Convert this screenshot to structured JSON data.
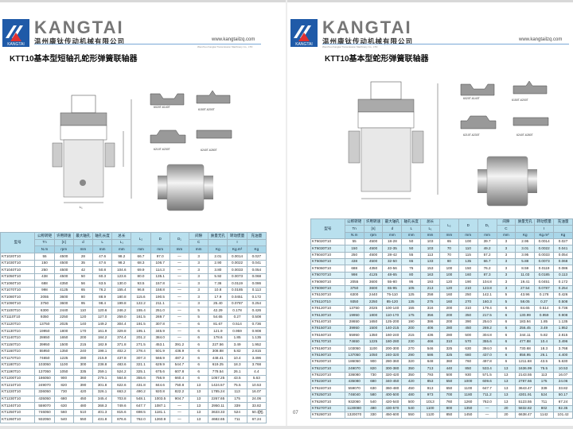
{
  "brand": {
    "name": "KANGTAI",
    "logo_text": "KANGTAI",
    "company": "温州康钛传动机械有限公司",
    "url": "www.kangtailzq.com",
    "url_sub": "Wenzhou Kangtai Transmission Machinery Co., LTD"
  },
  "left": {
    "title": "KTT10基本型短轴孔蛇形弹簧联轴器",
    "page": "06",
    "clip_labels": [
      "6020T-6140T",
      "6150T-6200T",
      "6210T-6230T",
      "6240T-6280T"
    ],
    "dim_labels": {
      "l2": "L₂",
      "l1": "L₁",
      "d": "Φd",
      "D": "ΦD",
      "D1": "ΦD₁"
    },
    "headers": {
      "model": "型号",
      "cols": [
        [
          "公称转矩",
          "Tn",
          "N.m"
        ],
        [
          "许用转速",
          "[n]",
          "rpm"
        ],
        [
          "最大轴孔",
          "d",
          "mm"
        ],
        [
          "轴孔长度",
          "L",
          "mm"
        ],
        [
          "总长",
          "L₁",
          "mm"
        ],
        [
          "",
          "L₂",
          "mm"
        ],
        [
          "",
          "D",
          "mm"
        ],
        [
          "",
          "D₁",
          "mm"
        ],
        [
          "间隙",
          "C",
          "mm"
        ],
        [
          "质量无孔",
          "",
          "Kg"
        ],
        [
          "转动惯量",
          "I",
          "Kg.m²"
        ],
        [
          "充油量",
          "",
          "Kg"
        ]
      ]
    },
    "rows": [
      [
        "KT1020T10",
        "55",
        "4500",
        "28",
        "47.6",
        "98.2",
        "66.7",
        "97.0",
        "—",
        "3",
        "2.01",
        "0.0014",
        "0.027"
      ],
      [
        "KT1030T10",
        "150",
        "4500",
        "35",
        "47.6",
        "98.2",
        "68.3",
        "106.7",
        "—",
        "3",
        "2.90",
        "0.0022",
        "0.041"
      ],
      [
        "KT1040T10",
        "250",
        "4500",
        "42",
        "50.8",
        "104.6",
        "69.9",
        "114.3",
        "—",
        "3",
        "3.80",
        "0.0033",
        "0.054"
      ],
      [
        "KT1050T10",
        "438",
        "4500",
        "50",
        "60.3",
        "123.6",
        "80.0",
        "135.1",
        "—",
        "3",
        "5.92",
        "0.0073",
        "0.068"
      ],
      [
        "KT1060T10",
        "688",
        "4350",
        "56",
        "63.5",
        "130.0",
        "93.5",
        "157.8",
        "—",
        "3",
        "7.36",
        "0.0119",
        "0.086"
      ],
      [
        "KT1070T10",
        "998",
        "4125",
        "65",
        "76.2",
        "155.4",
        "96.8",
        "158.8",
        "—",
        "3",
        "10.8",
        "0.0185",
        "0.113"
      ],
      [
        "KT1080T10",
        "2055",
        "3600",
        "80",
        "88.9",
        "180.8",
        "115.6",
        "190.5",
        "—",
        "3",
        "17.9",
        "0.0451",
        "0.172"
      ],
      [
        "KT1090T10",
        "3750",
        "3600",
        "95",
        "98.4",
        "199.8",
        "122.2",
        "211.1",
        "—",
        "3",
        "25.40",
        "0.0787",
        "0.254"
      ],
      [
        "KT1100T10",
        "6300",
        "2440",
        "110",
        "120.6",
        "246.2",
        "155.4",
        "251.0",
        "—",
        "5",
        "42.29",
        "0.178",
        "0.426"
      ],
      [
        "KT1110T10",
        "9350",
        "2250",
        "120",
        "127.0",
        "259.0",
        "161.5",
        "269.7",
        "—",
        "5",
        "54.65",
        "0.27",
        "0.508"
      ],
      [
        "KT1120T10",
        "13750",
        "2025",
        "140",
        "149.2",
        "304.4",
        "191.5",
        "307.8",
        "—",
        "6",
        "81.67",
        "0.514",
        "0.736"
      ],
      [
        "KT1130T10",
        "19950",
        "1800",
        "170",
        "161.9",
        "329.8",
        "195.1",
        "345.9",
        "—",
        "6",
        "121.9",
        "0.959",
        "0.908"
      ],
      [
        "KT1140T10",
        "28650",
        "1650",
        "200",
        "184.2",
        "374.4",
        "201.2",
        "384.0",
        "—",
        "6",
        "178.6",
        "1.85",
        "1.135"
      ],
      [
        "KT1150T10",
        "39950",
        "1500",
        "215",
        "182.9",
        "371.8",
        "271.5",
        "453.1",
        "391.2",
        "6",
        "227.56",
        "3.49",
        "1.952"
      ],
      [
        "KT1160T10",
        "55950",
        "1350",
        "240",
        "198.1",
        "402.2",
        "278.4",
        "501.9",
        "436.9",
        "6",
        "308.88",
        "5.82",
        "2.815"
      ],
      [
        "KT1170T10",
        "74650",
        "1225",
        "280",
        "215.9",
        "437.8",
        "307.3",
        "566.9",
        "487.2",
        "6",
        "448.41",
        "10.4",
        "3.496"
      ],
      [
        "KT1180T10",
        "103050",
        "1100",
        "300",
        "238.8",
        "483.6",
        "321.1",
        "629.9",
        "544.7",
        "6",
        "619.25",
        "18.3",
        "3.768"
      ],
      [
        "KT1190T10",
        "137050",
        "1050",
        "335",
        "259.1",
        "524.2",
        "325.1",
        "675.6",
        "607.8",
        "6",
        "778.54",
        "26.1",
        "4.4"
      ],
      [
        "KT1200T10",
        "186050",
        "900",
        "360",
        "279.1",
        "564.8",
        "355.6",
        "756.9",
        "660.4",
        "6",
        "1057.25",
        "43.5",
        "5.63"
      ],
      [
        "KT1210T10",
        "249070",
        "820",
        "390",
        "301.8",
        "622.6",
        "431.8",
        "844.6",
        "750.8",
        "13",
        "1424.57",
        "75.5",
        "10.53"
      ],
      [
        "KT1220T10",
        "336050",
        "730",
        "420",
        "326.1",
        "663.2",
        "490.2",
        "920.8",
        "822.2",
        "13",
        "1785.24",
        "113",
        "16.07"
      ],
      [
        "KT1230T10",
        "435050",
        "680",
        "450",
        "345.4",
        "703.8",
        "548.1",
        "1003.5",
        "904.7",
        "13",
        "2267.65",
        "175",
        "24.06"
      ],
      [
        "KT1240T10",
        "559070",
        "630",
        "480",
        "368.3",
        "749.6",
        "647.7",
        "1087.1",
        "—",
        "13",
        "2950.11",
        "339",
        "33.82"
      ],
      [
        "KT1250T10",
        "746050",
        "560",
        "510",
        "401.3",
        "815.6",
        "698.5",
        "1181.1",
        "—",
        "13",
        "3633.33",
        "524",
        "50.17"
      ],
      [
        "KT1260T10",
        "932050",
        "540",
        "550",
        "431.8",
        "876.6",
        "762.0",
        "1260.9",
        "—",
        "13",
        "4682.65",
        "711",
        "67.24"
      ]
    ]
  },
  "right": {
    "title": "KTT10基本型蛇形弹簧联轴器",
    "page": "07",
    "clip_labels": [
      "6020T-6140T",
      "6150T-6200T",
      "6210T-6230T",
      "6240T-6280T"
    ],
    "headers": {
      "model": "型号",
      "cols": [
        [
          "公称转矩",
          "Tn",
          "N.m"
        ],
        [
          "许用转速",
          "[n]",
          "rpm"
        ],
        [
          "最大轴孔",
          "d",
          "mm"
        ],
        [
          "轴孔长度",
          "L",
          "mm"
        ],
        [
          "总长",
          "L₁",
          "mm"
        ],
        [
          "",
          "L₂",
          "mm"
        ],
        [
          "",
          "D",
          "mm"
        ],
        [
          "",
          "D₁",
          "mm"
        ],
        [
          "间隙",
          "C",
          "mm"
        ],
        [
          "质量无孔",
          "",
          "Kg"
        ],
        [
          "转动惯量",
          "I",
          "Kg.m²"
        ],
        [
          "充油量",
          "",
          "Kg"
        ]
      ]
    },
    "rows": [
      [
        "KT6020T10",
        "55",
        "4500",
        "18-28",
        "50",
        "103",
        "65",
        "100",
        "39.7",
        "3",
        "2.95",
        "0.0014",
        "0.027"
      ],
      [
        "KT6030T10",
        "150",
        "4500",
        "22-35",
        "50",
        "103",
        "70",
        "110",
        "49.2",
        "3",
        "3.01",
        "0.0022",
        "0.041"
      ],
      [
        "KT6040T10",
        "250",
        "4500",
        "28-42",
        "55",
        "113",
        "70",
        "115",
        "57.2",
        "3",
        "3.95",
        "0.0033",
        "0.054"
      ],
      [
        "KT6050T10",
        "438",
        "4500",
        "32-50",
        "65",
        "133",
        "80",
        "135",
        "66.7",
        "3",
        "5.88",
        "0.0073",
        "0.068"
      ],
      [
        "KT6060T10",
        "688",
        "4350",
        "40-56",
        "75",
        "153",
        "100",
        "150",
        "76.2",
        "3",
        "8.59",
        "0.0119",
        "0.086"
      ],
      [
        "KT6070T10",
        "998",
        "4125",
        "48-65",
        "80",
        "163",
        "100",
        "160",
        "87.3",
        "3",
        "11.03",
        "0.0185",
        "0.113"
      ],
      [
        "KT6080T10",
        "2055",
        "3600",
        "55-80",
        "95",
        "193",
        "120",
        "190",
        "104.8",
        "3",
        "19.41",
        "0.0451",
        "0.172"
      ],
      [
        "KT6090T10",
        "3750",
        "3600",
        "65-95",
        "105",
        "213",
        "120",
        "210",
        "123.8",
        "3",
        "27.54",
        "0.0787",
        "0.254"
      ],
      [
        "KT6100T10",
        "6300",
        "2440",
        "75-110",
        "125",
        "258",
        "160",
        "250",
        "142.1",
        "5",
        "43.96",
        "0.178",
        "0.426"
      ],
      [
        "KT6110T10",
        "9350",
        "2250",
        "85-120",
        "135",
        "275",
        "160",
        "270",
        "160.3",
        "5",
        "58.05",
        "0.27",
        "0.508"
      ],
      [
        "KT6120T10",
        "13750",
        "2025",
        "100-140",
        "155",
        "316",
        "200",
        "310",
        "179.4",
        "6",
        "84.65",
        "0.514",
        "0.736"
      ],
      [
        "KT6130T10",
        "19950",
        "1800",
        "110-170",
        "175",
        "356",
        "200",
        "350",
        "217.5",
        "6",
        "130.99",
        "0.959",
        "0.908"
      ],
      [
        "KT6140T10",
        "28650",
        "1650",
        "125-200",
        "190",
        "386",
        "200",
        "390",
        "254.0",
        "6",
        "183.94",
        "1.85",
        "1.135"
      ],
      [
        "KT6150T10",
        "39950",
        "1500",
        "140-215",
        "200",
        "406",
        "280",
        "450",
        "269.2",
        "6",
        "256.45",
        "3.49",
        "1.952"
      ],
      [
        "KT6160T10",
        "55950",
        "1350",
        "160-240",
        "215",
        "436",
        "280",
        "500",
        "304.8",
        "6",
        "344.11",
        "5.82",
        "2.815"
      ],
      [
        "KT6170T10",
        "74650",
        "1225",
        "180-280",
        "230",
        "466",
        "310",
        "570",
        "355.6",
        "6",
        "477.88",
        "10.4",
        "3.496"
      ],
      [
        "KT6180T10",
        "103050",
        "1100",
        "200-300",
        "270",
        "546",
        "325",
        "630",
        "394.0",
        "6",
        "730.68",
        "18.3",
        "3.768"
      ],
      [
        "KT6190T10",
        "137050",
        "1050",
        "240-320",
        "290",
        "586",
        "325",
        "680",
        "437.0",
        "6",
        "858.95",
        "26.1",
        "4.400"
      ],
      [
        "KT6200T10",
        "186050",
        "900",
        "280-360",
        "320",
        "648",
        "360",
        "760",
        "497.8",
        "6",
        "1211.68",
        "43.5",
        "5.630"
      ],
      [
        "KT6210T10",
        "249070",
        "820",
        "300-380",
        "350",
        "713",
        "440",
        "850",
        "533.4",
        "13",
        "1636.99",
        "75.5",
        "10.53"
      ],
      [
        "KT6220T10",
        "336080",
        "730",
        "320-420",
        "350",
        "793",
        "500",
        "930",
        "571.5",
        "13",
        "2143.55",
        "113",
        "16.07"
      ],
      [
        "KT6230T10",
        "435080",
        "680",
        "340-450",
        "420",
        "853",
        "550",
        "1000",
        "609.6",
        "13",
        "2787.66",
        "175",
        "24.06"
      ],
      [
        "KT6240T10",
        "559070",
        "630",
        "360-480",
        "450",
        "913",
        "650",
        "1100",
        "647.7",
        "13",
        "3643.47",
        "339",
        "33.82"
      ],
      [
        "KT6250T10",
        "746040",
        "580",
        "400-500",
        "480",
        "973",
        "700",
        "1180",
        "711.2",
        "13",
        "4301.91",
        "524",
        "50.17"
      ],
      [
        "KT6260T10",
        "932060",
        "540",
        "420-540",
        "500",
        "1013",
        "760",
        "1260",
        "762.0",
        "13",
        "5123.55",
        "711",
        "67.24"
      ],
      [
        "KT6270T10",
        "1130080",
        "480",
        "430-570",
        "540",
        "1100",
        "800",
        "1350",
        "—",
        "20",
        "5832.82",
        "802",
        "82.35"
      ],
      [
        "KT6280T10",
        "1320070",
        "330",
        "450-600",
        "550",
        "1120",
        "850",
        "1450",
        "—",
        "20",
        "6638.47",
        "1142",
        "101.42"
      ]
    ]
  },
  "colors": {
    "brand_blue": "#1f5aa8",
    "header_blue": "#b9e0ee",
    "alt_row": "#ddf2f8"
  }
}
